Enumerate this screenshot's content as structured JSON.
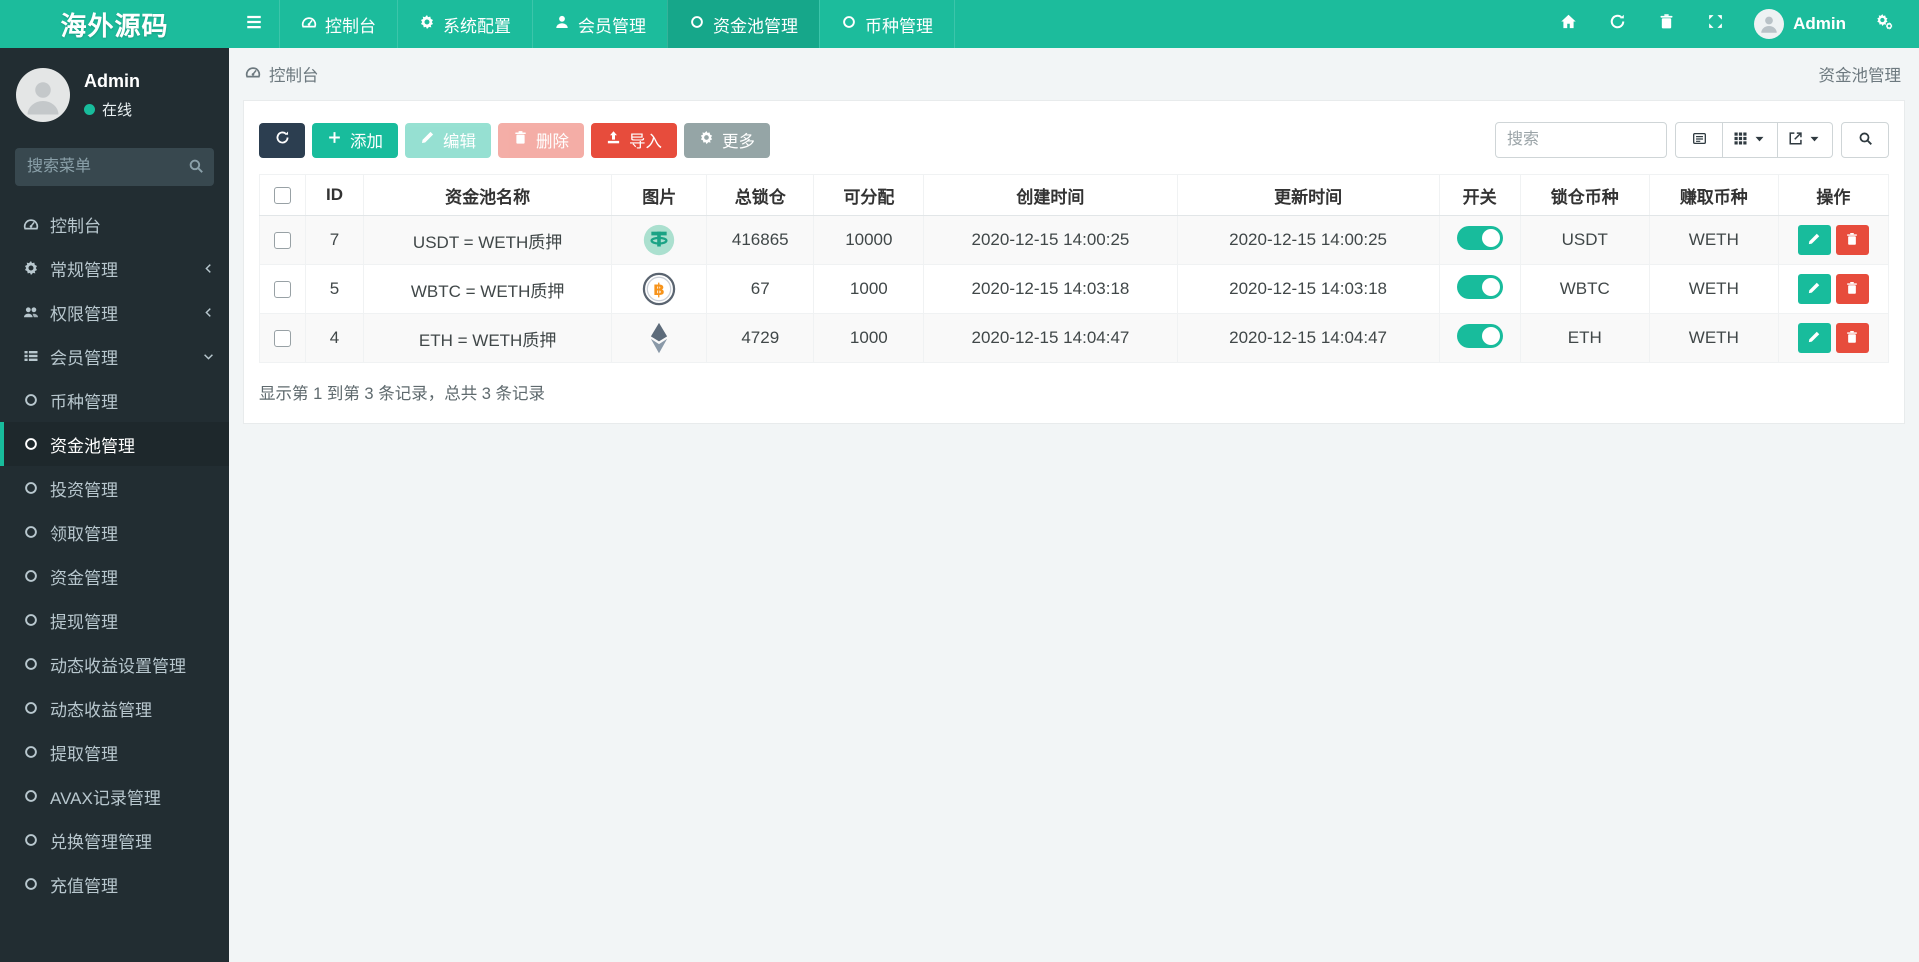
{
  "brand": "海外源码",
  "colors": {
    "accent": "#18bc9c",
    "navy": "#2c3e50",
    "danger": "#e74c3c",
    "muted": "#95a5a6",
    "sidebar_bg": "#222d32"
  },
  "navbar": {
    "tabs": [
      {
        "label": "控制台",
        "icon": "tachometer",
        "active": false
      },
      {
        "label": "系统配置",
        "icon": "gear",
        "active": false
      },
      {
        "label": "会员管理",
        "icon": "user",
        "active": false
      },
      {
        "label": "资金池管理",
        "icon": "circleo",
        "active": true
      },
      {
        "label": "币种管理",
        "icon": "circleo",
        "active": false
      }
    ],
    "user_name": "Admin"
  },
  "sidebar": {
    "user": {
      "name": "Admin",
      "status": "在线"
    },
    "search_placeholder": "搜索菜单",
    "items": [
      {
        "label": "控制台",
        "icon": "tachometer"
      },
      {
        "label": "常规管理",
        "icon": "gear",
        "chevron": "left"
      },
      {
        "label": "权限管理",
        "icon": "users",
        "chevron": "left"
      },
      {
        "label": "会员管理",
        "icon": "thlist",
        "chevron": "down",
        "expanded": true,
        "children": [
          {
            "label": "币种管理"
          },
          {
            "label": "资金池管理",
            "active": true
          },
          {
            "label": "投资管理"
          },
          {
            "label": "领取管理"
          },
          {
            "label": "资金管理"
          },
          {
            "label": "提现管理"
          },
          {
            "label": "动态收益设置管理"
          },
          {
            "label": "动态收益管理"
          },
          {
            "label": "提取管理"
          },
          {
            "label": "AVAX记录管理"
          },
          {
            "label": "兑换管理管理"
          },
          {
            "label": "充值管理"
          }
        ]
      }
    ]
  },
  "breadcrumb": {
    "left": "控制台",
    "right": "资金池管理"
  },
  "toolbar": {
    "add_label": "添加",
    "edit_label": "编辑",
    "delete_label": "删除",
    "import_label": "导入",
    "more_label": "更多",
    "search_placeholder": "搜索"
  },
  "table": {
    "columns": [
      "ID",
      "资金池名称",
      "图片",
      "总锁仓",
      "可分配",
      "创建时间",
      "更新时间",
      "开关",
      "锁仓币种",
      "赚取币种",
      "操作"
    ],
    "rows": [
      {
        "id": "7",
        "name": "USDT = WETH质押",
        "coin": "usdt",
        "total": "416865",
        "alloc": "10000",
        "created": "2020-12-15 14:00:25",
        "updated": "2020-12-15 14:00:25",
        "switch_on": true,
        "lock_coin": "USDT",
        "earn_coin": "WETH"
      },
      {
        "id": "5",
        "name": "WBTC = WETH质押",
        "coin": "wbtc",
        "total": "67",
        "alloc": "1000",
        "created": "2020-12-15 14:03:18",
        "updated": "2020-12-15 14:03:18",
        "switch_on": true,
        "lock_coin": "WBTC",
        "earn_coin": "WETH"
      },
      {
        "id": "4",
        "name": "ETH = WETH质押",
        "coin": "eth",
        "total": "4729",
        "alloc": "1000",
        "created": "2020-12-15 14:04:47",
        "updated": "2020-12-15 14:04:47",
        "switch_on": true,
        "lock_coin": "ETH",
        "earn_coin": "WETH"
      }
    ]
  },
  "footer": {
    "summary": "显示第 1 到第 3 条记录，总共 3 条记录"
  }
}
